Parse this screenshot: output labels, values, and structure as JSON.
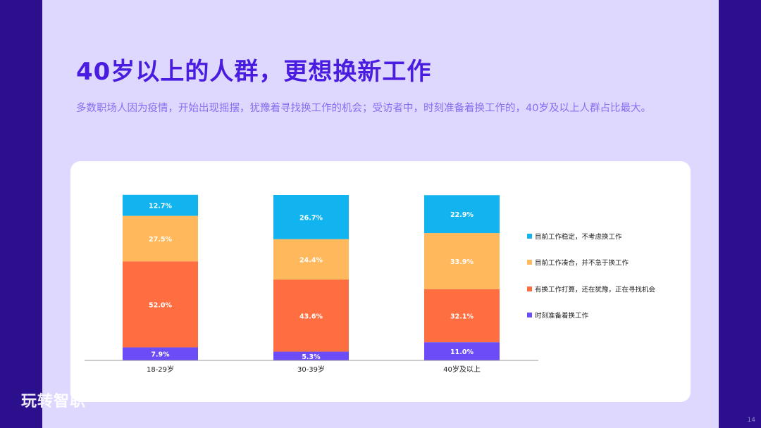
{
  "page": {
    "title": "40岁以上的人群，更想换新工作",
    "subtitle": "多数职场人因为疫情，开始出现摇摆，犹豫着寻找换工作的机会；受访者中，时刻准备着换工作的，40岁及以上人群占比最大。",
    "page_number": "14",
    "watermark": "玩转智职"
  },
  "colors": {
    "background": "#2b0f8c",
    "panel": "#ded8ff",
    "title": "#4a1ce0",
    "subtitle": "#8a6ef0"
  },
  "chart_data": {
    "type": "bar",
    "stacked": true,
    "categories": [
      "18-29岁",
      "30-39岁",
      "40岁及以上"
    ],
    "series": [
      {
        "name": "时刻准备着换工作",
        "color": "#6c4cf6",
        "values": [
          7.9,
          5.3,
          11.0
        ]
      },
      {
        "name": "有换工作打算，还在犹豫，正在寻找机会",
        "color": "#ff6e40",
        "values": [
          52.0,
          43.6,
          32.1
        ]
      },
      {
        "name": "目前工作凑合，并不急于换工作",
        "color": "#ffb85c",
        "values": [
          27.5,
          24.4,
          33.9
        ]
      },
      {
        "name": "目前工作稳定，不考虑换工作",
        "color": "#12b4f0",
        "values": [
          12.7,
          26.7,
          22.9
        ]
      }
    ],
    "legend_order": [
      "目前工作稳定，不考虑换工作",
      "目前工作凑合，并不急于换工作",
      "有换工作打算，还在犹豫，正在寻找机会",
      "时刻准备着换工作"
    ],
    "value_format": "%",
    "ylim": [
      0,
      100
    ],
    "grid": false,
    "legend_position": "right"
  }
}
